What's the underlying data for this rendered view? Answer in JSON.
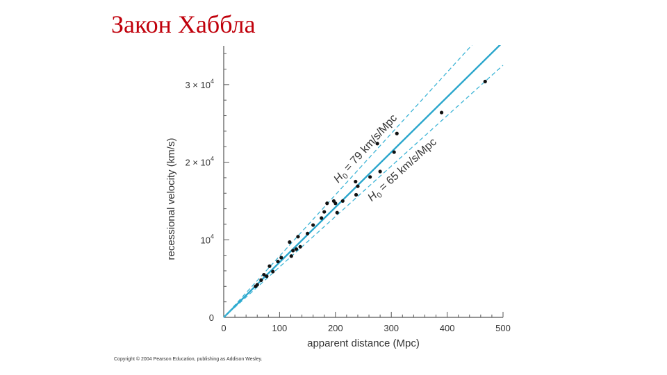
{
  "slide": {
    "title": "Закон Хаббла"
  },
  "chart_data": {
    "type": "scatter",
    "xlabel": "apparent distance (Mpc)",
    "ylabel": "recessional velocity (km/s)",
    "xlim": [
      0,
      500
    ],
    "ylim": [
      0,
      35000
    ],
    "x_ticks": [
      {
        "value": 0,
        "label": "0"
      },
      {
        "value": 100,
        "label": "100"
      },
      {
        "value": 200,
        "label": "200"
      },
      {
        "value": 300,
        "label": "300"
      },
      {
        "value": 400,
        "label": "400"
      },
      {
        "value": 500,
        "label": "500"
      }
    ],
    "y_ticks": [
      {
        "value": 0,
        "mantissa": "0",
        "exponent": ""
      },
      {
        "value": 10000,
        "mantissa": "10",
        "exponent": "4"
      },
      {
        "value": 20000,
        "mantissa": "2 × 10",
        "exponent": "4"
      },
      {
        "value": 30000,
        "mantissa": "3 × 10",
        "exponent": "4"
      }
    ],
    "grid": false,
    "colors": {
      "fit_line": "#2aa6cc",
      "bound_lines": "#3cb4d6",
      "points": "#111111",
      "axes": "#555555"
    },
    "lines": [
      {
        "kind": "best-fit",
        "slope": 71,
        "style": "solid"
      },
      {
        "kind": "upper-bound",
        "slope": 79,
        "style": "dashed",
        "label_symbol": "H",
        "label_subscript": "0",
        "label_text": " = 79 km/s/Mpc"
      },
      {
        "kind": "lower-bound",
        "slope": 65,
        "style": "dashed",
        "label_symbol": "H",
        "label_subscript": "0",
        "label_text": " = 65 km/s/Mpc"
      }
    ],
    "points": [
      {
        "x": 57,
        "y": 4000
      },
      {
        "x": 60,
        "y": 4200
      },
      {
        "x": 67,
        "y": 4800
      },
      {
        "x": 72,
        "y": 5500
      },
      {
        "x": 77,
        "y": 5300
      },
      {
        "x": 82,
        "y": 6600
      },
      {
        "x": 88,
        "y": 5900
      },
      {
        "x": 97,
        "y": 7200
      },
      {
        "x": 103,
        "y": 7700
      },
      {
        "x": 118,
        "y": 9700
      },
      {
        "x": 121,
        "y": 7900
      },
      {
        "x": 124,
        "y": 8600
      },
      {
        "x": 130,
        "y": 8800
      },
      {
        "x": 133,
        "y": 10400
      },
      {
        "x": 137,
        "y": 9100
      },
      {
        "x": 150,
        "y": 10800
      },
      {
        "x": 160,
        "y": 11900
      },
      {
        "x": 175,
        "y": 12800
      },
      {
        "x": 180,
        "y": 13600
      },
      {
        "x": 185,
        "y": 14700
      },
      {
        "x": 197,
        "y": 15000
      },
      {
        "x": 200,
        "y": 14700
      },
      {
        "x": 203,
        "y": 13500
      },
      {
        "x": 213,
        "y": 15000
      },
      {
        "x": 236,
        "y": 17500
      },
      {
        "x": 237,
        "y": 15800
      },
      {
        "x": 240,
        "y": 16900
      },
      {
        "x": 262,
        "y": 18100
      },
      {
        "x": 275,
        "y": 22400
      },
      {
        "x": 280,
        "y": 18800
      },
      {
        "x": 305,
        "y": 21300
      },
      {
        "x": 310,
        "y": 23700
      },
      {
        "x": 390,
        "y": 26400
      },
      {
        "x": 468,
        "y": 30400
      }
    ]
  },
  "footer": {
    "copyright": "Copyright © 2004 Pearson Education, publishing as Addison Wesley."
  }
}
